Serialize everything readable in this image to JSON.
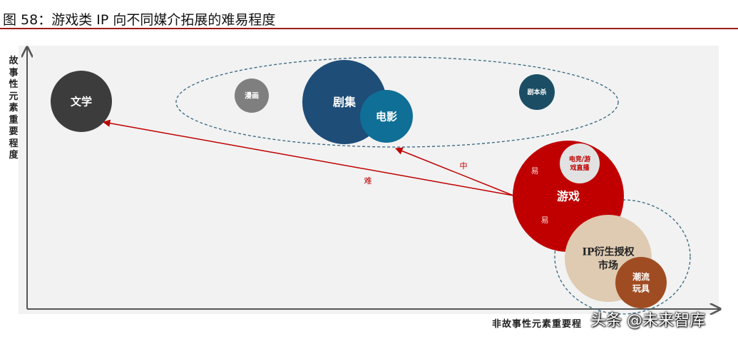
{
  "title": "图 58：游戏类 IP 向不同媒介拓展的难易程度",
  "watermark": "头条 @未来智库",
  "chart_data": {
    "type": "bubble",
    "ylabel": "故事性元素重要程度",
    "xlabel": "非故事性元素重要程",
    "colors": {
      "文学": "#3c3c3c",
      "漫画": "#7f7f7f",
      "剧集": "#1e4d78",
      "电影": "#0f6f96",
      "剧本杀": "#1b4e64",
      "游戏": "#c00000",
      "电竞/游戏直播": "#e2e2e2",
      "IP衍生授权市场": "#dfcbb2",
      "潮流玩具": "#a04c22",
      "arrows": "#c00000",
      "groups": "#35657f"
    },
    "bubbles": [
      {
        "label": "文学",
        "label_lines": [
          "文学"
        ]
      },
      {
        "label": "漫画",
        "label_lines": [
          "漫画"
        ]
      },
      {
        "label": "剧集",
        "label_lines": [
          "剧集"
        ]
      },
      {
        "label": "电影",
        "label_lines": [
          "电影"
        ]
      },
      {
        "label": "剧本杀",
        "label_lines": [
          "剧本杀"
        ]
      },
      {
        "label": "游戏",
        "label_lines": [
          "游戏"
        ]
      },
      {
        "label": "电竞/游戏直播",
        "label_lines": [
          "电竞/游",
          "戏直播"
        ]
      },
      {
        "label": "IP衍生授权市场",
        "label_lines": [
          "IP衍生授权",
          "市场"
        ]
      },
      {
        "label": "潮流玩具",
        "label_lines": [
          "潮流",
          "玩具"
        ]
      }
    ],
    "arrows": [
      {
        "from": "游戏",
        "to": "文学",
        "label": "难"
      },
      {
        "from": "游戏",
        "to": "剧集/电影",
        "label": "中"
      },
      {
        "from": "游戏",
        "to": "电竞/游戏直播",
        "label": "易"
      },
      {
        "from": "游戏",
        "to": "IP衍生授权市场",
        "label": "易"
      }
    ]
  }
}
